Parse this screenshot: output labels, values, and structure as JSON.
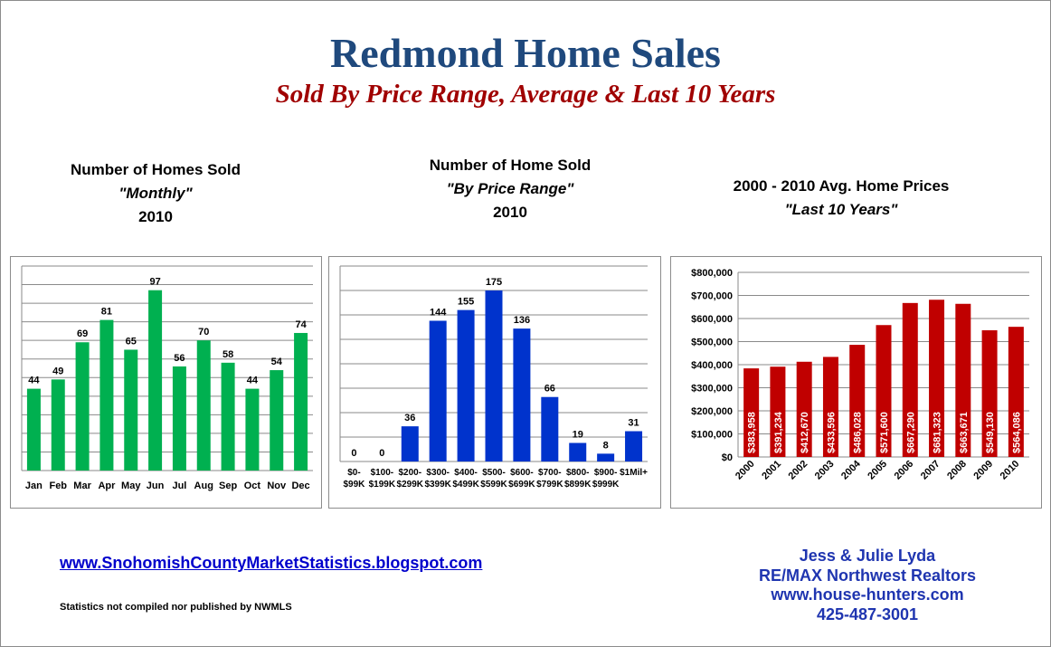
{
  "header": {
    "title": "Redmond Home Sales",
    "subtitle": "Sold By Price Range, Average & Last 10 Years"
  },
  "charts": {
    "monthly": {
      "line1": "Number of Homes Sold",
      "line2": "\"Monthly\"",
      "line3": "2010"
    },
    "price_range": {
      "line1": "Number of Home Sold",
      "line2": "\"By Price Range\"",
      "line3": "2010"
    },
    "avg_prices": {
      "line1": "2000 - 2010 Avg. Home Prices",
      "line2": "\"Last 10 Years\""
    }
  },
  "footer": {
    "blog_link": "www.SnohomishCountyMarketStatistics.blogspot.com",
    "disclaimer": "Statistics not compiled nor published by NWMLS",
    "contact_name": "Jess & Julie Lyda",
    "contact_company": "RE/MAX Northwest Realtors",
    "contact_site": "www.house-hunters.com",
    "contact_phone": "425-487-3001"
  },
  "chart_data": [
    {
      "type": "bar",
      "categories": [
        "Jan",
        "Feb",
        "Mar",
        "Apr",
        "May",
        "Jun",
        "Jul",
        "Aug",
        "Sep",
        "Oct",
        "Nov",
        "Dec"
      ],
      "values": [
        44,
        49,
        69,
        81,
        65,
        97,
        56,
        70,
        58,
        44,
        54,
        74
      ],
      "data_labels": [
        "44",
        "49",
        "69",
        "81",
        "65",
        "97",
        "56",
        "70",
        "58",
        "44",
        "54",
        "74"
      ],
      "ylim": [
        0,
        110
      ],
      "grid": true,
      "color": "#00b050"
    },
    {
      "type": "bar",
      "categories": [
        [
          "$0-",
          "$99K"
        ],
        [
          "$100-",
          "$199K"
        ],
        [
          "$200-",
          "$299K"
        ],
        [
          "$300-",
          "$399K"
        ],
        [
          "$400-",
          "$499K"
        ],
        [
          "$500-",
          "$599K"
        ],
        [
          "$600-",
          "$699K"
        ],
        [
          "$700-",
          "$799K"
        ],
        [
          "$800-",
          "$899K"
        ],
        [
          "$900-",
          "$999K"
        ],
        [
          "$1Mil+",
          ""
        ]
      ],
      "values": [
        0,
        0,
        36,
        144,
        155,
        175,
        136,
        66,
        19,
        8,
        31
      ],
      "data_labels": [
        "0",
        "0",
        "36",
        "144",
        "155",
        "175",
        "136",
        "66",
        "19",
        "8",
        "31"
      ],
      "ylim": [
        0,
        200
      ],
      "grid": true,
      "color": "#0033cc"
    },
    {
      "type": "bar",
      "categories": [
        "2000",
        "2001",
        "2002",
        "2003",
        "2004",
        "2005",
        "2006",
        "2007",
        "2008",
        "2009",
        "2010"
      ],
      "values": [
        383958,
        391234,
        412670,
        433596,
        486028,
        571600,
        667290,
        681323,
        663671,
        549130,
        564086
      ],
      "data_labels": [
        "$383,958",
        "$391,234",
        "$412,670",
        "$433,596",
        "$486,028",
        "$571,600",
        "$667,290",
        "$681,323",
        "$663,671",
        "$549,130",
        "$564,086"
      ],
      "ylim": [
        0,
        800000
      ],
      "yticks": [
        "$0",
        "$100,000",
        "$200,000",
        "$300,000",
        "$400,000",
        "$500,000",
        "$600,000",
        "$700,000",
        "$800,000"
      ],
      "grid": true,
      "color": "#c00000"
    }
  ]
}
